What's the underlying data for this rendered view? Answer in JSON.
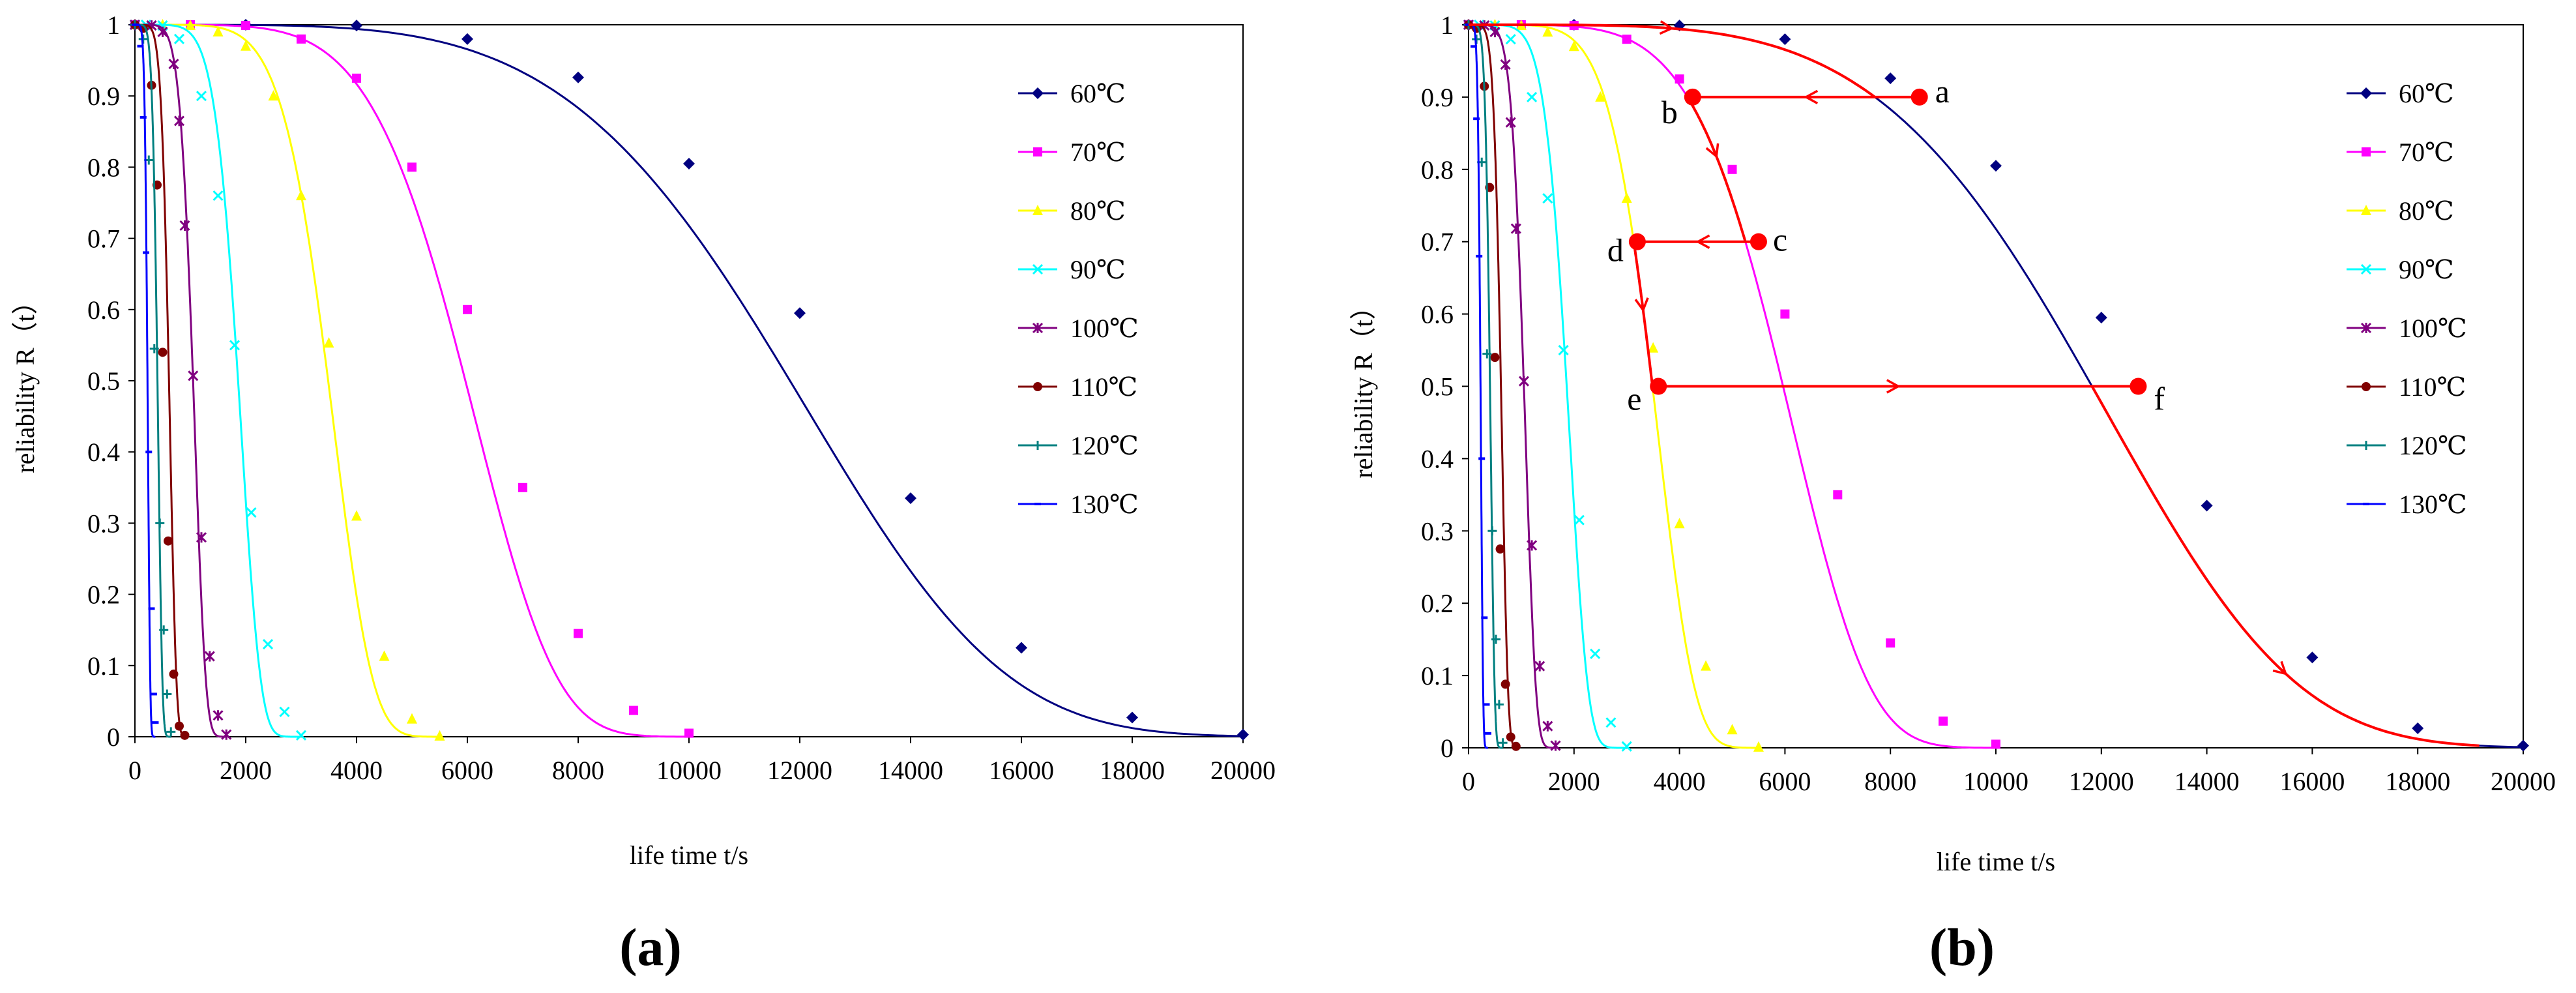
{
  "figure": {
    "panel_labels": [
      "(a)",
      "(b)"
    ]
  },
  "chart_data": [
    {
      "type": "line",
      "panel": "(a)",
      "title": "",
      "xlabel": "life time t/s",
      "ylabel": "reliability R（t）",
      "xlim": [
        0,
        20000
      ],
      "ylim": [
        0,
        1
      ],
      "xticks": [
        0,
        2000,
        4000,
        6000,
        8000,
        10000,
        12000,
        14000,
        16000,
        18000,
        20000
      ],
      "yticks": [
        0,
        0.1,
        0.2,
        0.3,
        0.4,
        0.5,
        0.6,
        0.7,
        0.8,
        0.9,
        1
      ],
      "grid": false,
      "legend": "right",
      "series": [
        {
          "name": "60℃",
          "color": "#000080",
          "marker": "diamond",
          "scale": 12850,
          "shape": 4.4,
          "t_max": 20000,
          "points": [
            [
              0,
              1
            ],
            [
              2000,
              1
            ],
            [
              4000,
              0.999
            ],
            [
              6000,
              0.98
            ],
            [
              8000,
              0.926
            ],
            [
              10000,
              0.805
            ],
            [
              12000,
              0.595
            ],
            [
              14000,
              0.335
            ],
            [
              16000,
              0.125
            ],
            [
              18000,
              0.027
            ],
            [
              20000,
              0.003
            ]
          ]
        },
        {
          "name": "70℃",
          "color": "#ff00ff",
          "marker": "square",
          "scale": 6400,
          "shape": 5.2,
          "t_max": 10000,
          "points": [
            [
              0,
              1
            ],
            [
              1000,
              1
            ],
            [
              2000,
              0.999
            ],
            [
              3000,
              0.98
            ],
            [
              4000,
              0.925
            ],
            [
              5000,
              0.8
            ],
            [
              6000,
              0.6
            ],
            [
              7000,
              0.35
            ],
            [
              8000,
              0.145
            ],
            [
              9000,
              0.037
            ],
            [
              10000,
              0.005
            ]
          ]
        },
        {
          "name": "80℃",
          "color": "#ffff00",
          "marker": "triangle",
          "scale": 3700,
          "shape": 6.2,
          "t_max": 5500,
          "points": [
            [
              0,
              1
            ],
            [
              500,
              1
            ],
            [
              1000,
              0.999
            ],
            [
              1500,
              0.99
            ],
            [
              2000,
              0.97
            ],
            [
              2500,
              0.9
            ],
            [
              3000,
              0.76
            ],
            [
              3500,
              0.553
            ],
            [
              4000,
              0.31
            ],
            [
              4500,
              0.113
            ],
            [
              5000,
              0.025
            ],
            [
              5500,
              0.001
            ]
          ]
        },
        {
          "name": "90℃",
          "color": "#00ffff",
          "marker": "x",
          "scale": 1970,
          "shape": 6.5,
          "t_max": 3000,
          "points": [
            [
              0,
              1
            ],
            [
              200,
              1
            ],
            [
              500,
              0.999
            ],
            [
              800,
              0.98
            ],
            [
              1200,
              0.9
            ],
            [
              1500,
              0.76
            ],
            [
              1800,
              0.55
            ],
            [
              2100,
              0.315
            ],
            [
              2400,
              0.13
            ],
            [
              2700,
              0.035
            ],
            [
              3000,
              0.002
            ]
          ]
        },
        {
          "name": "100℃",
          "color": "#800080",
          "marker": "star",
          "scale": 1110,
          "shape": 6.5,
          "t_max": 1650,
          "points": [
            [
              0,
              1
            ],
            [
              300,
              0.999
            ],
            [
              500,
              0.99
            ],
            [
              700,
              0.945
            ],
            [
              800,
              0.865
            ],
            [
              900,
              0.718
            ],
            [
              1050,
              0.507
            ],
            [
              1200,
              0.28
            ],
            [
              1350,
              0.113
            ],
            [
              1500,
              0.03
            ],
            [
              1650,
              0.003
            ]
          ]
        },
        {
          "name": "110℃",
          "color": "#800000",
          "marker": "circle",
          "scale": 650,
          "shape": 6.5,
          "t_max": 900,
          "points": [
            [
              0,
              1
            ],
            [
              150,
              0.995
            ],
            [
              300,
              0.915
            ],
            [
              400,
              0.775
            ],
            [
              500,
              0.54
            ],
            [
              600,
              0.275
            ],
            [
              700,
              0.088
            ],
            [
              800,
              0.015
            ],
            [
              900,
              0.002
            ]
          ]
        },
        {
          "name": "120℃",
          "color": "#008080",
          "marker": "plus",
          "scale": 430,
          "shape": 6.5,
          "t_max": 650,
          "points": [
            [
              0,
              1
            ],
            [
              150,
              0.98
            ],
            [
              250,
              0.81
            ],
            [
              350,
              0.545
            ],
            [
              450,
              0.3
            ],
            [
              520,
              0.15
            ],
            [
              580,
              0.06
            ],
            [
              650,
              0.007
            ]
          ]
        },
        {
          "name": "130℃",
          "color": "#0000ff",
          "marker": "dash",
          "scale": 240,
          "shape": 6.5,
          "t_max": 370,
          "points": [
            [
              0,
              1
            ],
            [
              100,
              0.97
            ],
            [
              150,
              0.87
            ],
            [
              200,
              0.68
            ],
            [
              250,
              0.4
            ],
            [
              300,
              0.18
            ],
            [
              340,
              0.06
            ],
            [
              370,
              0.02
            ]
          ]
        }
      ]
    },
    {
      "type": "line",
      "panel": "(b)",
      "title": "",
      "xlabel": "life time t/s",
      "ylabel": "reliability R（t）",
      "xlim": [
        0,
        20000
      ],
      "ylim": [
        0,
        1
      ],
      "xticks": [
        0,
        2000,
        4000,
        6000,
        8000,
        10000,
        12000,
        14000,
        16000,
        18000,
        20000
      ],
      "yticks": [
        0,
        0.1,
        0.2,
        0.3,
        0.4,
        0.5,
        0.6,
        0.7,
        0.8,
        0.9,
        1
      ],
      "grid": false,
      "legend": "right",
      "series_same_as_panel_a": true,
      "path_color": "#ff0000",
      "path_points": [
        {
          "label": "a",
          "x": 8550,
          "y": 0.9
        },
        {
          "label": "b",
          "x": 4250,
          "y": 0.9
        },
        {
          "label": "c",
          "x": 5500,
          "y": 0.7
        },
        {
          "label": "d",
          "x": 3200,
          "y": 0.7
        },
        {
          "label": "e",
          "x": 3600,
          "y": 0.5
        },
        {
          "label": "f",
          "x": 12700,
          "y": 0.5
        }
      ],
      "path_segments": [
        {
          "from": [
            0,
            1
          ],
          "to": "a",
          "follow": "60℃"
        },
        {
          "from": "a",
          "to": "b",
          "kind": "horizontal"
        },
        {
          "from": "b",
          "to": "c",
          "follow": "70℃"
        },
        {
          "from": "c",
          "to": "d",
          "kind": "horizontal"
        },
        {
          "from": "d",
          "to": "e",
          "follow": "80℃"
        },
        {
          "from": "e",
          "to": "f",
          "kind": "horizontal"
        },
        {
          "from": "f",
          "to": [
            20000,
            0.003
          ],
          "follow": "60℃"
        }
      ]
    }
  ]
}
